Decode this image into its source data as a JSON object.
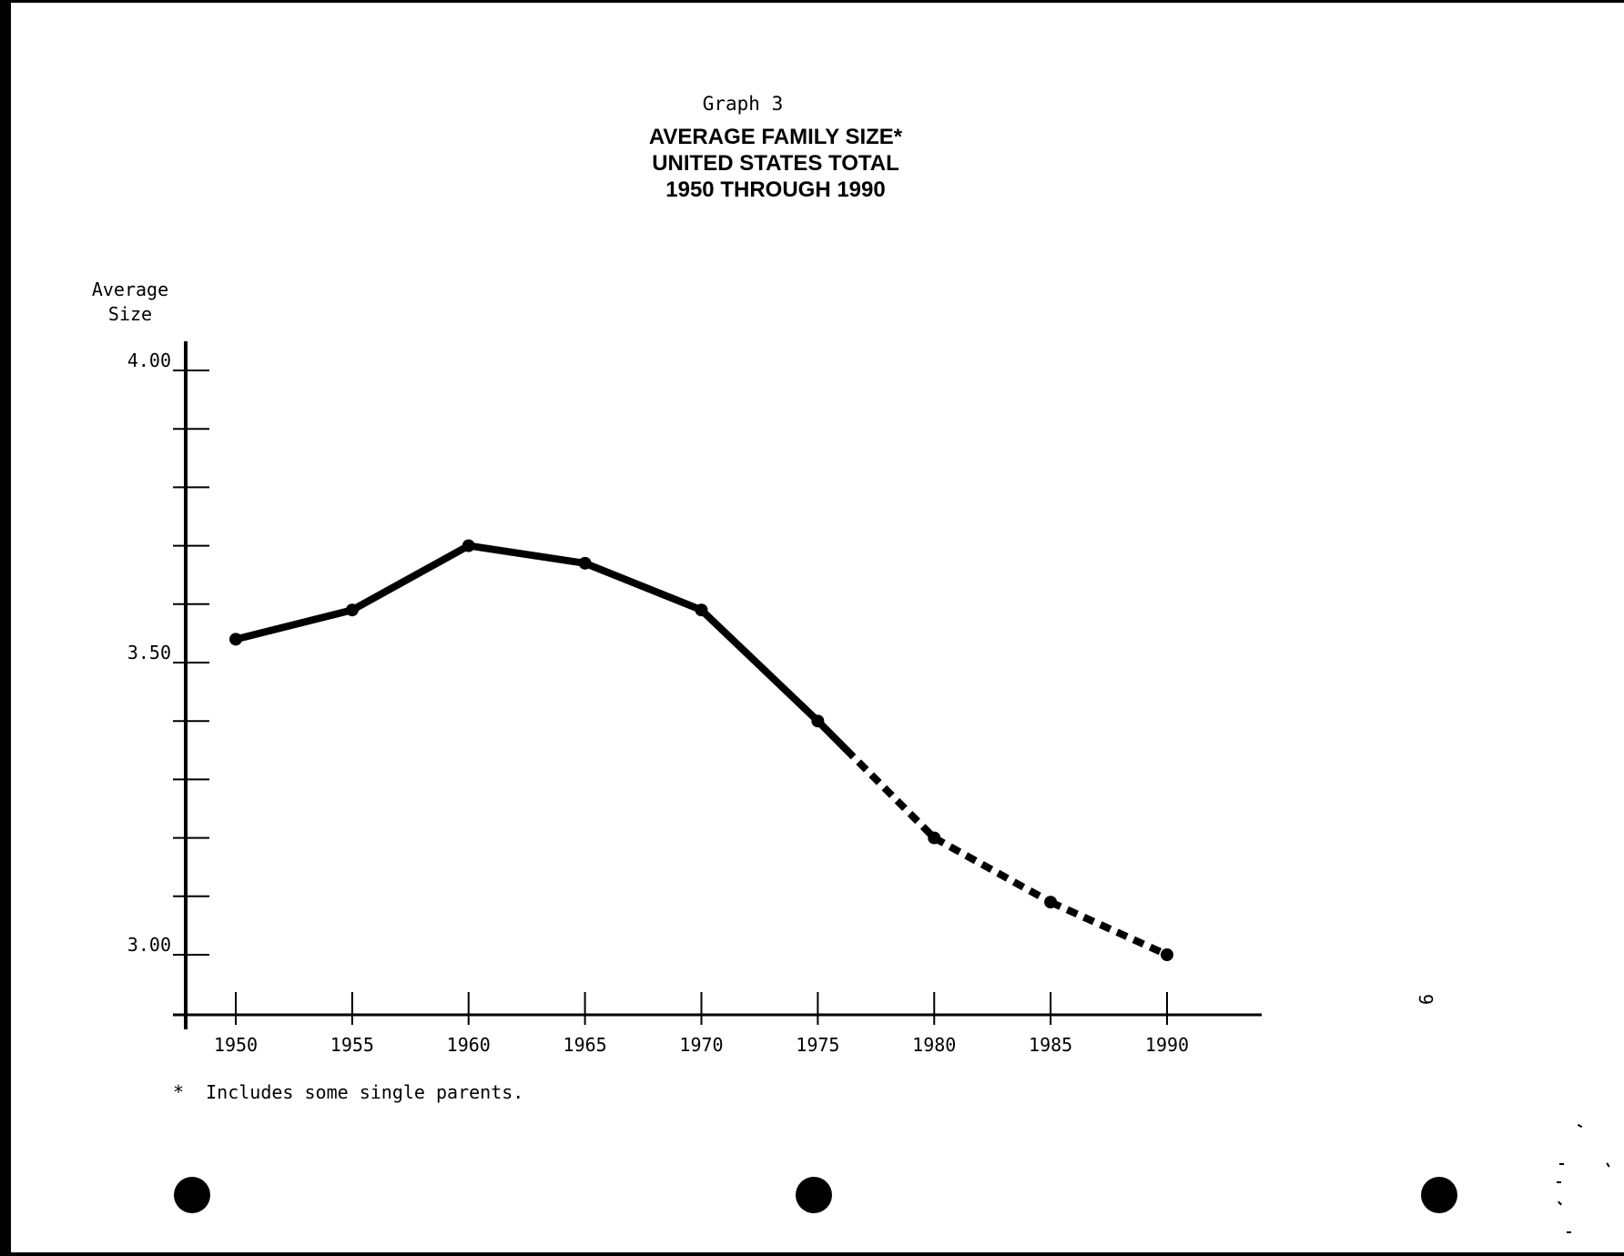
{
  "graph_label": "Graph 3",
  "title_lines": [
    "AVERAGE FAMILY SIZE*",
    "UNITED STATES TOTAL",
    "1950 THROUGH 1990"
  ],
  "y_axis_title_lines": [
    "Average",
    "Size"
  ],
  "footnote": "*  Includes some single parents.",
  "page_number": "9",
  "chart_data": {
    "type": "line",
    "title": "AVERAGE FAMILY SIZE* UNITED STATES TOTAL 1950 THROUGH 1990",
    "ylabel": "Average Size",
    "xlabel": "",
    "x": [
      1950,
      1955,
      1960,
      1965,
      1970,
      1975,
      1980,
      1985,
      1990
    ],
    "x_tick_labels": [
      "1950",
      "1955",
      "1960",
      "1965",
      "1970",
      "1975",
      "1980",
      "1985",
      "1990"
    ],
    "y_tick_labels": [
      {
        "value": 4.0,
        "label": "4.00"
      },
      {
        "value": 3.5,
        "label": "3.50"
      },
      {
        "value": 3.0,
        "label": "3.00"
      }
    ],
    "y_minor_ticks": [
      4.0,
      3.9,
      3.8,
      3.7,
      3.6,
      3.5,
      3.4,
      3.3,
      3.2,
      3.1,
      3.0
    ],
    "ylim": [
      2.9,
      4.05
    ],
    "series": [
      {
        "values": [
          3.54,
          3.59,
          3.7,
          3.67,
          3.59,
          3.4,
          3.2,
          3.09,
          3.0
        ],
        "segment_styles": [
          "solid",
          "solid",
          "solid",
          "solid",
          "solid",
          "solid-then-dashed",
          "dashed",
          "dashed"
        ],
        "dash_starts_at_x": 1976.2,
        "color": "#000000"
      }
    ],
    "grid": false,
    "legend": "none"
  }
}
